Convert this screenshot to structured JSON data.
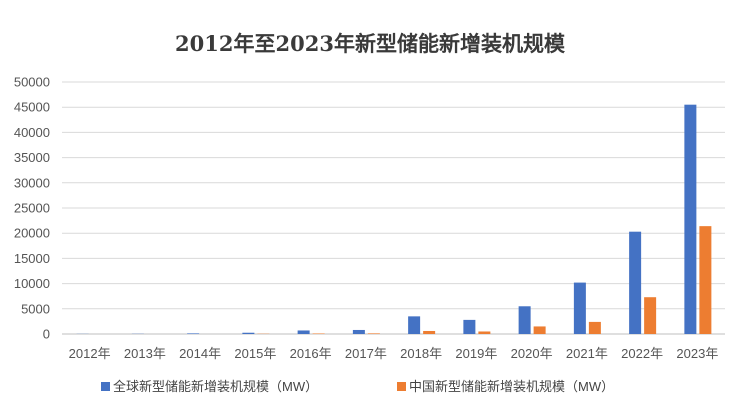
{
  "chart_data": {
    "type": "bar",
    "title": "2012年至2023年新型储能新增装机规模",
    "xlabel": "",
    "ylabel": "",
    "ylim": [
      0,
      50000
    ],
    "yticks": [
      "0",
      "5000",
      "10000",
      "15000",
      "20000",
      "25000",
      "30000",
      "35000",
      "40000",
      "45000",
      "50000"
    ],
    "categories": [
      "2012年",
      "2013年",
      "2014年",
      "2015年",
      "2016年",
      "2017年",
      "2018年",
      "2019年",
      "2020年",
      "2021年",
      "2022年",
      "2023年"
    ],
    "grid": true,
    "legend_position": "bottom",
    "series": [
      {
        "name": "全球新型储能新增装机规模（MW）",
        "color": "#4472c4",
        "values": [
          30,
          40,
          120,
          250,
          700,
          800,
          3500,
          2800,
          5500,
          10200,
          20300,
          45500
        ]
      },
      {
        "name": "中国新型储能新增装机规模（MW）",
        "color": "#ed7d31",
        "values": [
          0,
          0,
          0,
          50,
          100,
          120,
          600,
          500,
          1500,
          2400,
          7300,
          21400
        ]
      }
    ]
  }
}
